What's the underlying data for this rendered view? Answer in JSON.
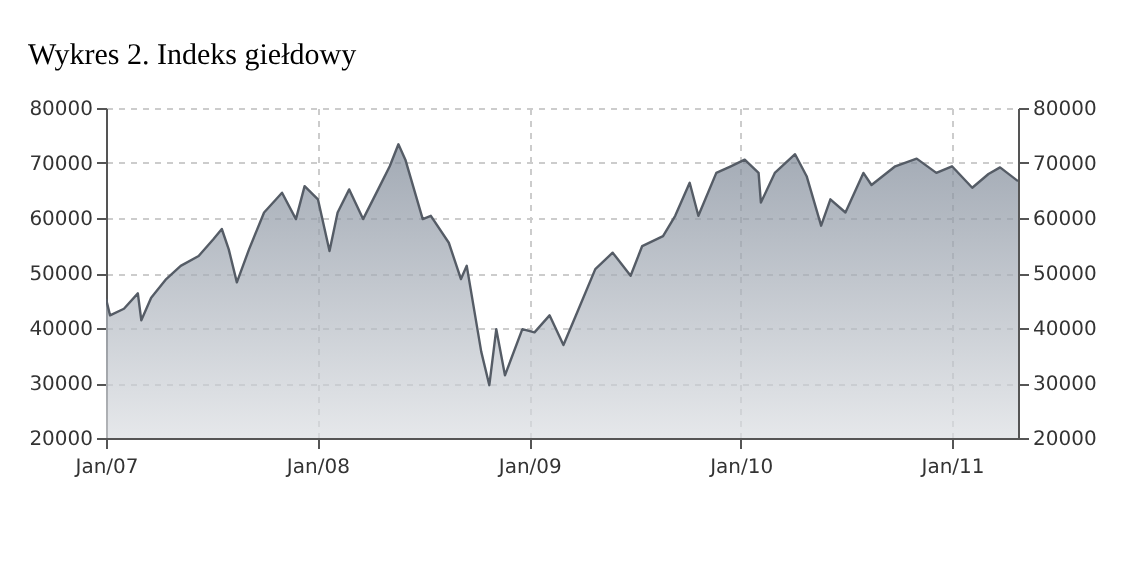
{
  "chart_data": {
    "type": "area",
    "title": "Wykres 2. Indeks giełdowy",
    "x": [
      "2007-01-01",
      "2007-01-08",
      "2007-02-01",
      "2007-02-25",
      "2007-03-03",
      "2007-03-20",
      "2007-04-15",
      "2007-05-10",
      "2007-06-10",
      "2007-07-05",
      "2007-07-20",
      "2007-08-01",
      "2007-08-15",
      "2007-09-05",
      "2007-10-01",
      "2007-11-01",
      "2007-11-25",
      "2007-12-10",
      "2008-01-02",
      "2008-01-22",
      "2008-02-05",
      "2008-02-25",
      "2008-03-20",
      "2008-04-15",
      "2008-05-05",
      "2008-05-20",
      "2008-06-01",
      "2008-07-01",
      "2008-07-15",
      "2008-08-15",
      "2008-09-05",
      "2008-09-15",
      "2008-10-10",
      "2008-10-24",
      "2008-11-05",
      "2008-11-20",
      "2008-12-20",
      "2009-01-10",
      "2009-02-05",
      "2009-03-01",
      "2009-03-25",
      "2009-04-25",
      "2009-05-25",
      "2009-06-25",
      "2009-07-15",
      "2009-08-20",
      "2009-09-10",
      "2009-10-05",
      "2009-10-20",
      "2009-11-20",
      "2009-12-15",
      "2010-01-08",
      "2010-02-01",
      "2010-02-05",
      "2010-03-01",
      "2010-04-05",
      "2010-04-25",
      "2010-05-20",
      "2010-06-05",
      "2010-07-01",
      "2010-08-01",
      "2010-08-15",
      "2010-09-25",
      "2010-11-01",
      "2010-12-05",
      "2011-01-01",
      "2011-02-05",
      "2011-03-05",
      "2011-03-25",
      "2011-04-25"
    ],
    "series": [
      {
        "color": "#7a8594",
        "values": [
          45300,
          42300,
          43500,
          46300,
          41400,
          45500,
          48900,
          51300,
          53100,
          56100,
          58000,
          54300,
          48300,
          54300,
          61000,
          64600,
          59800,
          65800,
          63400,
          54000,
          61000,
          65200,
          59800,
          65200,
          69400,
          73400,
          70600,
          59800,
          60400,
          55500,
          48900,
          51300,
          35700,
          29600,
          39800,
          31400,
          39800,
          39200,
          42300,
          36900,
          42900,
          50700,
          53700,
          49500,
          54900,
          56700,
          60400,
          66400,
          60400,
          68200,
          69400,
          70600,
          68200,
          62800,
          68200,
          71600,
          67600,
          58600,
          63400,
          61000,
          68200,
          66000,
          69400,
          70800,
          68200,
          69400,
          65500,
          68000,
          69200,
          66700
        ]
      }
    ],
    "xlim": [
      "2007-01-01",
      "2011-04-25"
    ],
    "xticks": [
      {
        "value": "2007-01-01",
        "label": "Jan/07"
      },
      {
        "value": "2008-01-01",
        "label": "Jan/08"
      },
      {
        "value": "2009-01-01",
        "label": "Jan/09"
      },
      {
        "value": "2010-01-01",
        "label": "Jan/10"
      },
      {
        "value": "2011-01-01",
        "label": "Jan/11"
      }
    ],
    "ylim": [
      20000,
      80000
    ],
    "yticks": [
      20000,
      30000,
      40000,
      50000,
      60000,
      70000,
      80000
    ],
    "y2lim": [
      20000,
      80000
    ],
    "y2ticks": [
      20000,
      30000,
      40000,
      50000,
      60000,
      70000,
      80000
    ],
    "grid": true
  }
}
